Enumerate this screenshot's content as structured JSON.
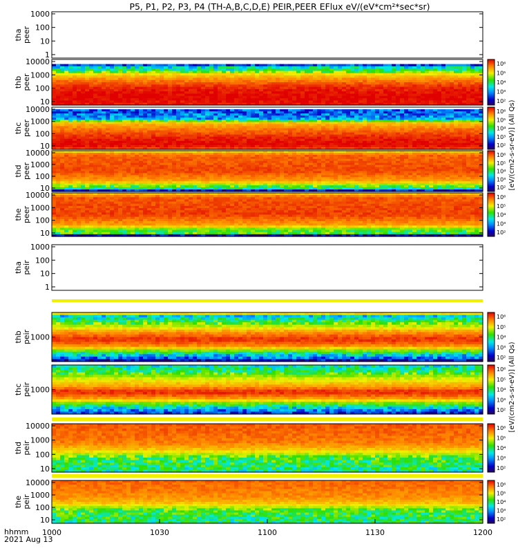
{
  "chart_data": {
    "type": "heatmap",
    "title": "P5, P1, P2, P3, P4 (TH-A,B,C,D,E) PEIR,PEER EFlux eV/(eV*cm²*sec*sr)",
    "time_axis": {
      "label_line1": "hhmm",
      "label_line2": "2021 Aug 13",
      "ticks": [
        "1000",
        "1030",
        "1100",
        "1130",
        "1200"
      ]
    },
    "colorbar": {
      "ticks": [
        "10²",
        "10³",
        "10⁴",
        "10⁵",
        "10⁶"
      ],
      "label_peer": "[eV/(cm2-s-sr-eV)] (All Qs)",
      "label_peir": "[eV/(cm2-s-sr-eV)] (All Qs)"
    },
    "panels": [
      {
        "probe": "tha",
        "product": "peer",
        "yticks": [
          "1000",
          "100",
          "10",
          "1"
        ],
        "ylabel_line1": "tha",
        "ylabel_line2": "peer",
        "has_data": false,
        "has_colorbar": false
      },
      {
        "probe": "thb",
        "product": "peer",
        "yticks": [
          "10000",
          "1000",
          "100",
          "10"
        ],
        "ylabel_line1": "thb",
        "ylabel_line2": "peer",
        "has_data": true,
        "has_colorbar": true
      },
      {
        "probe": "thc",
        "product": "peer",
        "yticks": [
          "10000",
          "1000",
          "100",
          "10"
        ],
        "ylabel_line1": "thc",
        "ylabel_line2": "peer",
        "has_data": true,
        "has_colorbar": true
      },
      {
        "probe": "thd",
        "product": "peer",
        "yticks": [
          "10000",
          "1000",
          "100",
          "10"
        ],
        "ylabel_line1": "thd",
        "ylabel_line2": "peer",
        "has_data": true,
        "has_colorbar": true
      },
      {
        "probe": "the",
        "product": "peer",
        "yticks": [
          "10000",
          "1000",
          "100",
          "10"
        ],
        "ylabel_line1": "the",
        "ylabel_line2": "peer",
        "has_data": true,
        "has_colorbar": true
      },
      {
        "probe": "tha",
        "product": "peir",
        "yticks": [
          "1000",
          "100",
          "10",
          "1"
        ],
        "ylabel_line1": "tha",
        "ylabel_line2": "peir",
        "has_data": false,
        "has_colorbar": false
      },
      {
        "probe": "thb",
        "product": "peir",
        "yticks": [
          "1000"
        ],
        "ylabel_line1": "thb",
        "ylabel_line2": "peir",
        "has_data": true,
        "has_colorbar": true
      },
      {
        "probe": "thc",
        "product": "peir",
        "yticks": [
          "1000"
        ],
        "ylabel_line1": "thc",
        "ylabel_line2": "peir",
        "has_data": true,
        "has_colorbar": true
      },
      {
        "probe": "thd",
        "product": "peir",
        "yticks": [
          "10000",
          "1000",
          "100",
          "10"
        ],
        "ylabel_line1": "thd",
        "ylabel_line2": "peir",
        "has_data": true,
        "has_colorbar": true
      },
      {
        "probe": "the",
        "product": "peir",
        "yticks": [
          "10000",
          "1000",
          "100",
          "10"
        ],
        "ylabel_line1": "the",
        "ylabel_line2": "peir",
        "has_data": true,
        "has_colorbar": true
      }
    ]
  }
}
